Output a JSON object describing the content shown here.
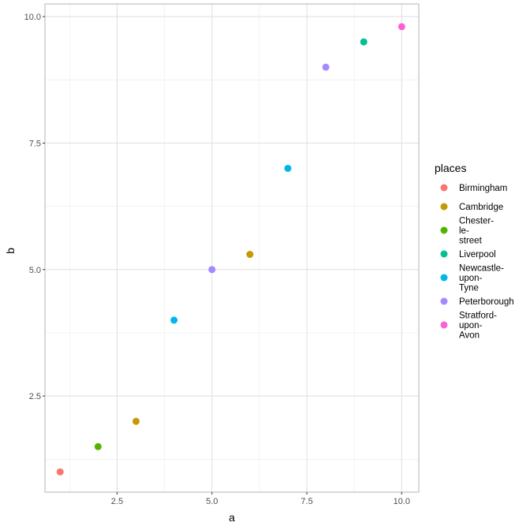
{
  "chart_data": {
    "type": "scatter",
    "xlabel": "a",
    "ylabel": "b",
    "xlim": [
      0.6,
      10.45
    ],
    "ylim": [
      0.6,
      10.25
    ],
    "x_ticks": [
      2.5,
      5.0,
      7.5,
      10.0
    ],
    "x_tick_labels": [
      "2.5",
      "5.0",
      "7.5",
      "10.0"
    ],
    "y_ticks": [
      2.5,
      5.0,
      7.5,
      10.0
    ],
    "y_tick_labels": [
      "2.5",
      "5.0",
      "7.5",
      "10.0"
    ],
    "x_minor": [
      1.25,
      3.75,
      6.25,
      8.75
    ],
    "y_minor": [
      1.25,
      3.75,
      6.25,
      8.75
    ],
    "grid": true,
    "legend": {
      "title": "places",
      "placement": "right",
      "entries": [
        {
          "name": "Birmingham",
          "display": "Birmingham",
          "color": "#F8766D"
        },
        {
          "name": "Cambridge",
          "display": "Cambridge",
          "color": "#C49A00"
        },
        {
          "name": "Chester-le-street",
          "display": "Chester-\nle-\nstreet",
          "color": "#53B400"
        },
        {
          "name": "Liverpool",
          "display": "Liverpool",
          "color": "#00C094"
        },
        {
          "name": "Newcastle-upon-Tyne",
          "display": "Newcastle-\nupon-\nTyne",
          "color": "#00B6EB"
        },
        {
          "name": "Peterborough",
          "display": "Peterborough",
          "color": "#A58AFF"
        },
        {
          "name": "Stratford-upon-Avon",
          "display": "Stratford-\nupon-\nAvon",
          "color": "#FB61D7"
        }
      ]
    },
    "points": [
      {
        "x": 1,
        "y": 1.0,
        "place": "Birmingham"
      },
      {
        "x": 2,
        "y": 1.5,
        "place": "Chester-le-street"
      },
      {
        "x": 3,
        "y": 2.0,
        "place": "Cambridge"
      },
      {
        "x": 4,
        "y": 4.0,
        "place": "Newcastle-upon-Tyne"
      },
      {
        "x": 5,
        "y": 5.0,
        "place": "Peterborough"
      },
      {
        "x": 6,
        "y": 5.3,
        "place": "Cambridge"
      },
      {
        "x": 7,
        "y": 7.0,
        "place": "Newcastle-upon-Tyne"
      },
      {
        "x": 8,
        "y": 9.0,
        "place": "Peterborough"
      },
      {
        "x": 9,
        "y": 9.5,
        "place": "Liverpool"
      },
      {
        "x": 10,
        "y": 9.8,
        "place": "Stratford-upon-Avon"
      }
    ]
  }
}
